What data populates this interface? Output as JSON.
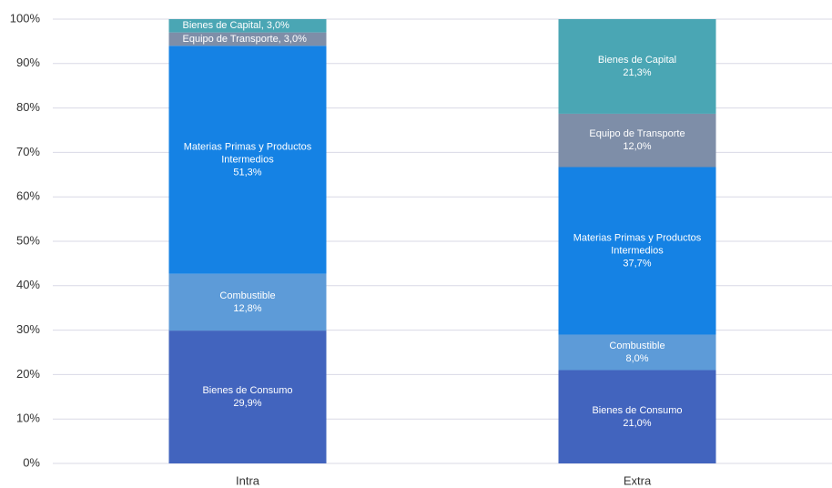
{
  "chart_data": {
    "type": "stacked_bar",
    "categories": [
      "Intra",
      "Extra"
    ],
    "series": [
      {
        "name": "Bienes de Consumo",
        "color": "#4264be",
        "values": [
          29.9,
          21.0
        ],
        "value_labels": [
          "29,9%",
          "21,0%"
        ]
      },
      {
        "name": "Combustible",
        "color": "#5d9bd8",
        "values": [
          12.8,
          8.0
        ],
        "value_labels": [
          "12,8%",
          "8,0%"
        ]
      },
      {
        "name": "Materias Primas y Productos Intermedios",
        "color": "#1582e4",
        "values": [
          51.3,
          37.7
        ],
        "value_labels": [
          "51,3%",
          "37,7%"
        ]
      },
      {
        "name": "Equipo de Transporte",
        "color": "#7e8ea8",
        "values": [
          3.0,
          12.0
        ],
        "value_labels": [
          "Equipo de Transporte, 3,0%",
          "12,0%"
        ]
      },
      {
        "name": "Bienes de Capital",
        "color": "#4aa6b4",
        "values": [
          3.0,
          21.3
        ],
        "value_labels": [
          "Bienes de Capital, 3,0%",
          "21,3%"
        ]
      }
    ],
    "ylim": [
      0,
      100
    ],
    "yticks": [
      {
        "value": 0,
        "label": "0%"
      },
      {
        "value": 10,
        "label": "10%"
      },
      {
        "value": 20,
        "label": "20%"
      },
      {
        "value": 30,
        "label": "30%"
      },
      {
        "value": 40,
        "label": "40%"
      },
      {
        "value": 50,
        "label": "50%"
      },
      {
        "value": 60,
        "label": "60%"
      },
      {
        "value": 70,
        "label": "70%"
      },
      {
        "value": 80,
        "label": "80%"
      },
      {
        "value": 90,
        "label": "90%"
      },
      {
        "value": 100,
        "label": "100%"
      }
    ],
    "grid": true
  }
}
